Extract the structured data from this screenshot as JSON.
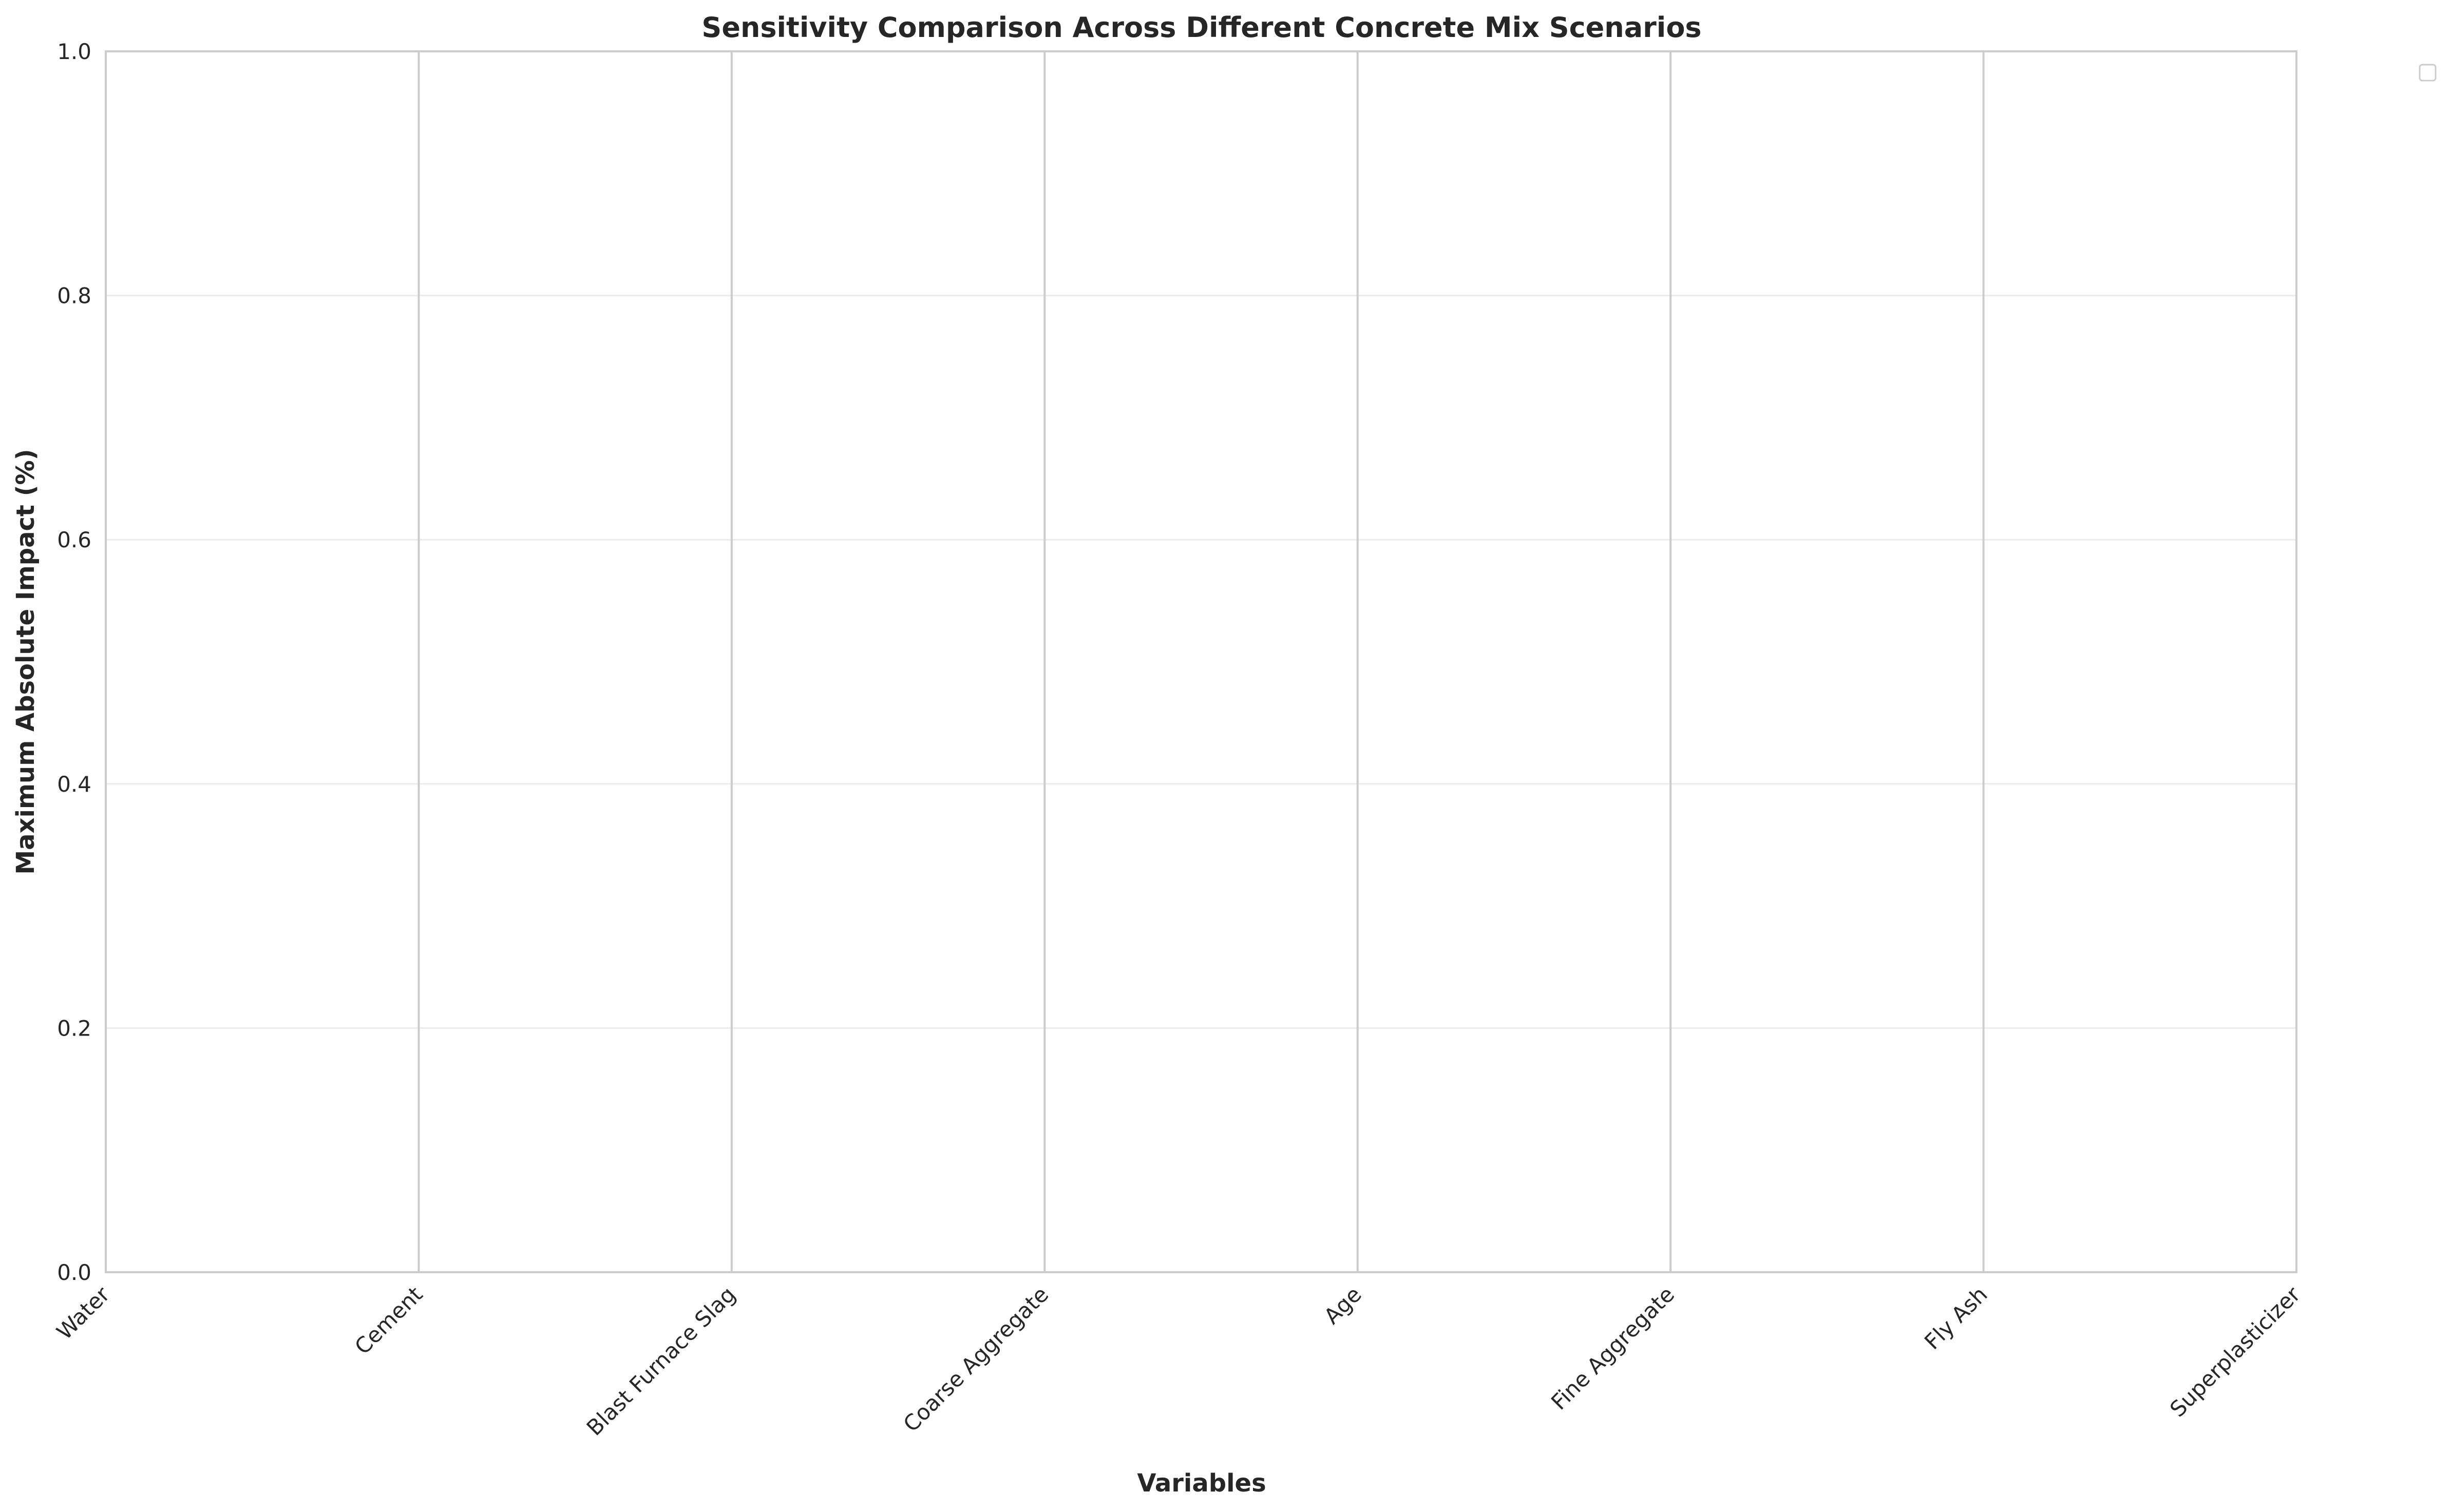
{
  "chart_data": {
    "type": "bar",
    "title": "Sensitivity Comparison Across Different Concrete Mix Scenarios",
    "xlabel": "Variables",
    "ylabel": "Maximum Absolute Impact (%)",
    "categories": [
      "Water",
      "Cement",
      "Blast Furnace Slag",
      "Coarse Aggregate",
      "Age",
      "Fine Aggregate",
      "Fly Ash",
      "Superplasticizer"
    ],
    "series": [],
    "ylim": [
      0,
      1.0
    ],
    "yticks": [
      "0.0",
      "0.2",
      "0.4",
      "0.6",
      "0.8",
      "1.0"
    ],
    "grid": true,
    "legend": {
      "placement": "outside top-right",
      "entries": []
    },
    "colors": {
      "frame": "#cccccc",
      "grid": "#ebebeb",
      "text": "#262626"
    }
  }
}
